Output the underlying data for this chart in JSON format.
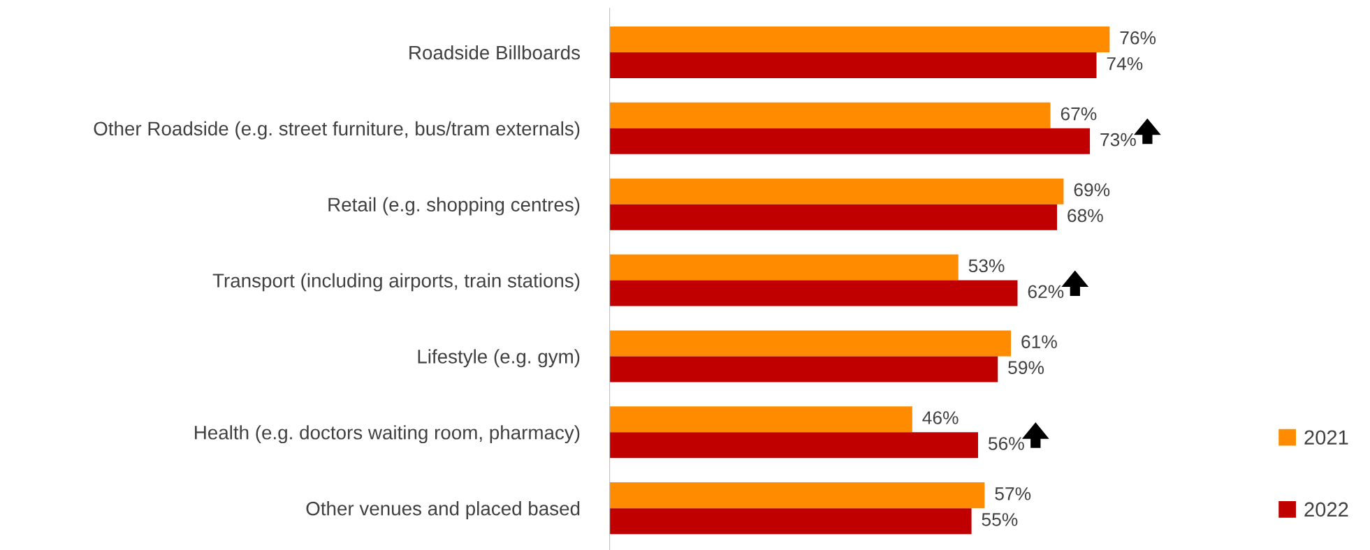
{
  "chart_data": {
    "type": "bar",
    "orientation": "horizontal",
    "categories": [
      "Roadside Billboards",
      "Other Roadside (e.g. street furniture, bus/tram externals)",
      "Retail (e.g. shopping centres)",
      "Transport (including airports, train stations)",
      "Lifestyle (e.g. gym)",
      "Health (e.g. doctors waiting room, pharmacy)",
      "Other venues and placed based"
    ],
    "series": [
      {
        "name": "2021",
        "color": "#ff8c00",
        "values": [
          76,
          67,
          69,
          53,
          61,
          46,
          57
        ],
        "value_labels": [
          "76%",
          "67%",
          "69%",
          "53%",
          "61%",
          "46%",
          "57%"
        ]
      },
      {
        "name": "2022",
        "color": "#c00000",
        "values": [
          74,
          73,
          68,
          62,
          59,
          56,
          55
        ],
        "value_labels": [
          "74%",
          "73%",
          "68%",
          "62%",
          "59%",
          "56%",
          "55%"
        ]
      }
    ],
    "legend": "bottom right",
    "grid": false
  }
}
